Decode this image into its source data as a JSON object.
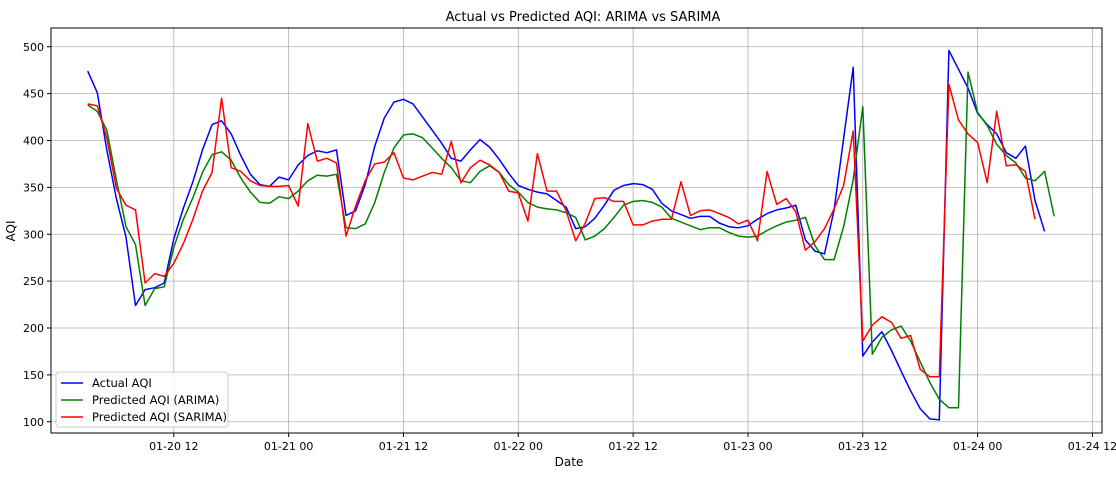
{
  "chart_data": {
    "type": "line",
    "title": "Actual vs Predicted AQI: ARIMA vs SARIMA",
    "xlabel": "Date",
    "ylabel": "AQI",
    "x_start": "2025-01-20 03:00",
    "x_step_hours": 1,
    "xlim": [
      "2025-01-19 23:10",
      "2025-01-24 13:00"
    ],
    "ylim": [
      88,
      520
    ],
    "x_ticks": [
      {
        "time": "2025-01-20 12:00",
        "label": "01-20 12"
      },
      {
        "time": "2025-01-21 00:00",
        "label": "01-21 00"
      },
      {
        "time": "2025-01-21 12:00",
        "label": "01-21 12"
      },
      {
        "time": "2025-01-22 00:00",
        "label": "01-22 00"
      },
      {
        "time": "2025-01-22 12:00",
        "label": "01-22 12"
      },
      {
        "time": "2025-01-23 00:00",
        "label": "01-23 00"
      },
      {
        "time": "2025-01-23 12:00",
        "label": "01-23 12"
      },
      {
        "time": "2025-01-24 00:00",
        "label": "01-24 00"
      },
      {
        "time": "2025-01-24 12:00",
        "label": "01-24 12"
      }
    ],
    "y_ticks": [
      100,
      150,
      200,
      250,
      300,
      350,
      400,
      450,
      500
    ],
    "grid": true,
    "legend_position": "lower-left",
    "series": [
      {
        "name": "Actual AQI",
        "color": "#0000ff",
        "values": [
          474,
          451,
          390,
          338,
          297,
          224,
          241,
          243,
          248,
          295,
          328,
          356,
          390,
          417,
          421,
          407,
          384,
          364,
          353,
          351,
          361,
          358,
          374,
          384,
          389,
          387,
          390,
          320,
          325,
          353,
          394,
          424,
          441,
          444,
          439,
          425,
          411,
          397,
          381,
          378,
          390,
          401,
          393,
          380,
          365,
          352,
          348,
          345,
          343,
          336,
          329,
          306,
          308,
          317,
          331,
          347,
          352,
          354,
          353,
          348,
          333,
          325,
          321,
          317,
          319,
          319,
          312,
          308,
          307,
          309,
          316,
          322,
          326,
          328,
          331,
          294,
          282,
          279,
          326,
          402,
          478,
          170,
          185,
          196,
          176,
          154,
          133,
          114,
          103,
          102,
          496,
          476,
          456,
          429,
          417,
          407,
          387,
          381,
          394,
          336,
          303
        ]
      },
      {
        "name": "Predicted AQI (ARIMA)",
        "color": "#008000",
        "values": [
          438,
          431,
          411,
          358,
          308,
          289,
          224,
          242,
          244,
          286,
          316,
          339,
          366,
          385,
          388,
          379,
          360,
          345,
          334,
          333,
          340,
          338,
          346,
          357,
          363,
          362,
          364,
          307,
          306,
          311,
          334,
          366,
          392,
          406,
          407,
          403,
          392,
          381,
          371,
          357,
          355,
          367,
          373,
          366,
          353,
          345,
          334,
          329,
          327,
          326,
          323,
          318,
          294,
          298,
          306,
          318,
          331,
          335,
          336,
          334,
          329,
          317,
          313,
          309,
          305,
          307,
          307,
          302,
          298,
          297,
          298,
          304,
          309,
          313,
          315,
          318,
          288,
          273,
          273,
          308,
          358,
          436,
          172,
          190,
          198,
          202,
          186,
          164,
          142,
          124,
          115,
          115,
          473,
          430,
          416,
          396,
          384,
          376,
          360,
          357,
          367,
          319
        ]
      },
      {
        "name": "Predicted AQI (SARIMA)",
        "color": "#ff0000",
        "values": [
          439,
          437,
          403,
          349,
          331,
          326,
          248,
          258,
          255,
          269,
          290,
          316,
          346,
          366,
          445,
          371,
          367,
          357,
          352,
          351,
          351,
          352,
          330,
          418,
          378,
          381,
          376,
          298,
          330,
          357,
          375,
          377,
          387,
          360,
          358,
          362,
          366,
          364,
          399,
          355,
          371,
          379,
          374,
          366,
          346,
          344,
          314,
          386,
          346,
          346,
          325,
          293,
          312,
          338,
          339,
          335,
          335,
          310,
          310,
          314,
          316,
          316,
          356,
          320,
          325,
          326,
          322,
          318,
          311,
          315,
          293,
          367,
          332,
          338,
          324,
          283,
          292,
          306,
          327,
          352,
          410,
          186,
          203,
          212,
          206,
          189,
          192,
          156,
          148,
          148,
          460,
          422,
          407,
          398,
          355,
          431,
          373,
          374,
          367,
          316
        ]
      }
    ]
  }
}
